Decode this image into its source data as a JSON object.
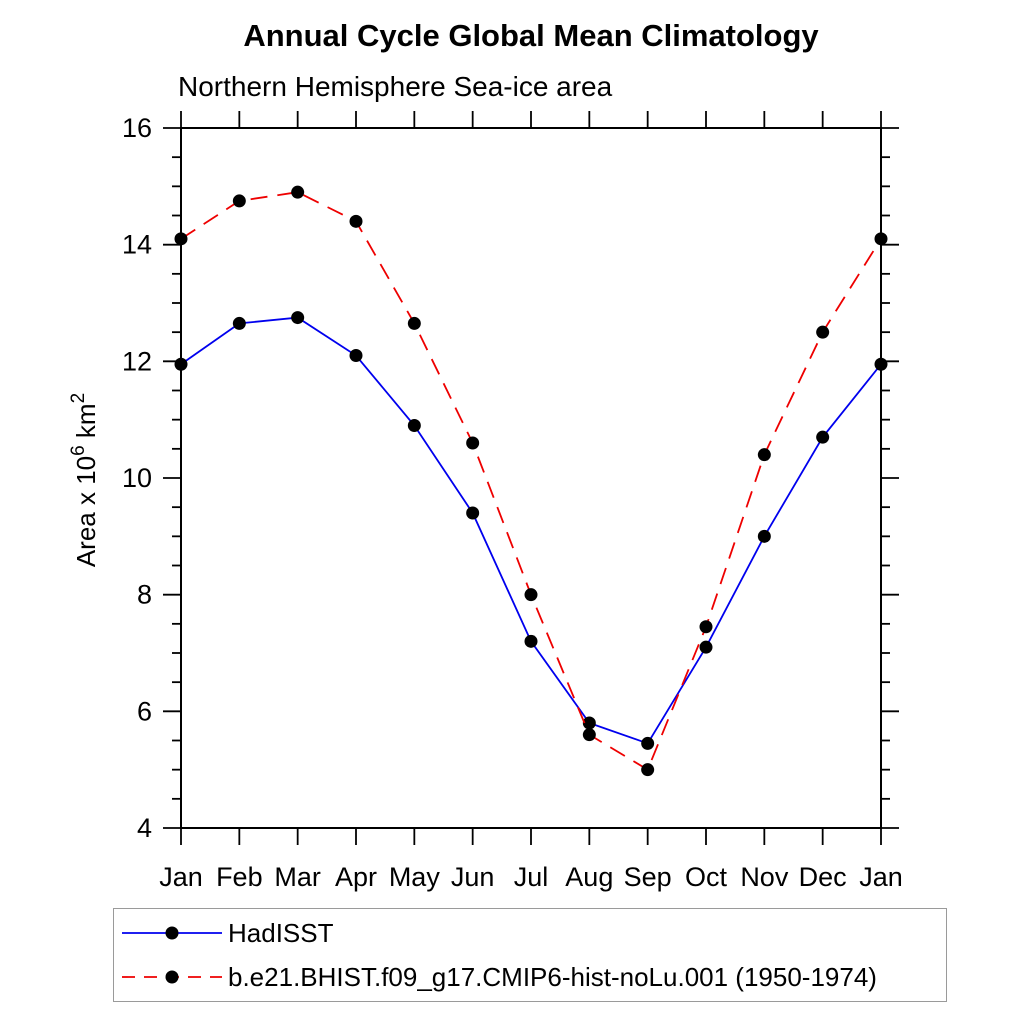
{
  "chart_data": {
    "type": "line",
    "title": "Annual Cycle Global Mean Climatology",
    "subtitle": "Northern Hemisphere Sea-ice area",
    "ylabel": "Area x 10^6 km^2",
    "xlabel": "",
    "categories": [
      "Jan",
      "Feb",
      "Mar",
      "Apr",
      "May",
      "Jun",
      "Jul",
      "Aug",
      "Sep",
      "Oct",
      "Nov",
      "Dec",
      "Jan"
    ],
    "ylim": [
      4,
      16
    ],
    "ytick_major": [
      4,
      6,
      8,
      10,
      12,
      14,
      16
    ],
    "ytick_minor_step": 0.5,
    "grid": false,
    "legend_position": "bottom-left-box",
    "series": [
      {
        "name": "HadISST",
        "color": "#0000ee",
        "line_style": "solid",
        "marker": "black-dot",
        "values": [
          11.95,
          12.65,
          12.75,
          12.1,
          10.9,
          9.4,
          7.2,
          5.8,
          5.45,
          7.1,
          9.0,
          10.7,
          11.95
        ]
      },
      {
        "name": "b.e21.BHIST.f09_g17.CMIP6-hist-noLu.001 (1950-1974)",
        "color": "#ee0000",
        "line_style": "dashed",
        "marker": "black-dot",
        "values": [
          14.1,
          14.75,
          14.9,
          14.4,
          12.65,
          10.6,
          8.0,
          5.6,
          5.0,
          7.45,
          10.4,
          12.5,
          14.1
        ]
      }
    ],
    "marker_color": "#000000"
  },
  "y_axis_title": {
    "prefix": "Area x 10",
    "sup1": "6",
    "mid": " km",
    "sup2": "2"
  }
}
